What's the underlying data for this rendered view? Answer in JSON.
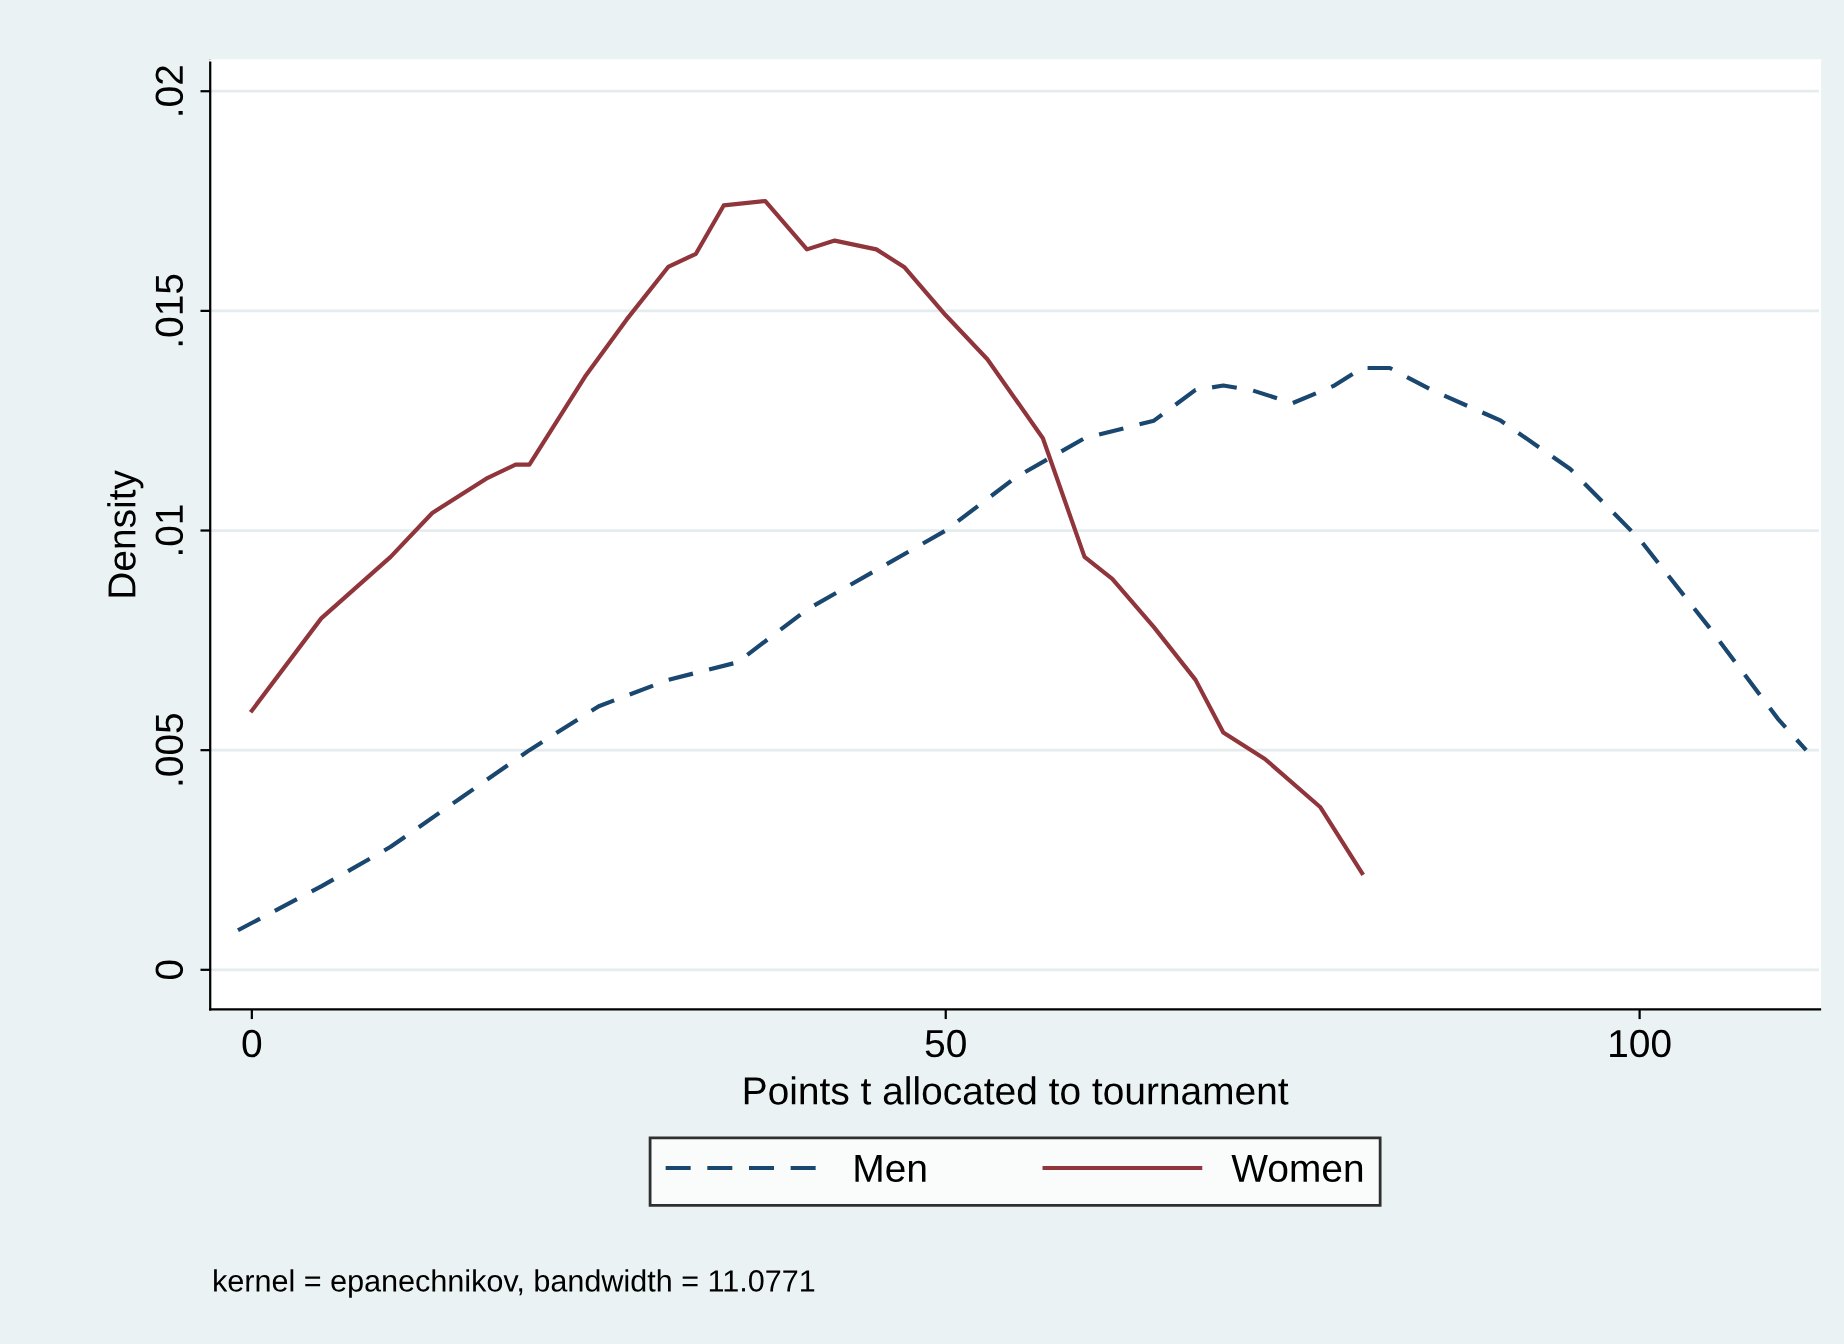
{
  "chart_data": {
    "type": "line",
    "xlabel": "Points t allocated to tournament",
    "ylabel": "Density",
    "xlim": [
      -3,
      113
    ],
    "xticks": [
      0,
      50,
      100
    ],
    "ylim": [
      -0.0009,
      0.0207
    ],
    "yticks": [
      {
        "value": 0,
        "label": "0"
      },
      {
        "value": 0.005,
        "label": ".005"
      },
      {
        "value": 0.01,
        "label": ".01"
      },
      {
        "value": 0.015,
        "label": ".015"
      },
      {
        "value": 0.02,
        "label": ".02"
      }
    ],
    "grid": "y",
    "legend": "bottom",
    "annotations": [
      "kernel = epanechnikov, bandwidth = 11.0771"
    ],
    "series": [
      {
        "name": "Men",
        "color": "#1a476f",
        "line_style": "dashed",
        "x": [
          -1,
          5,
          10,
          15,
          20,
          25,
          30,
          35,
          40,
          45,
          50,
          55,
          60,
          65,
          68,
          70,
          72,
          75,
          78,
          80,
          82,
          85,
          90,
          95,
          100,
          105,
          110,
          112
        ],
        "values": [
          0.0009,
          0.0019,
          0.0028,
          0.0039,
          0.005,
          0.006,
          0.0066,
          0.007,
          0.0082,
          0.0091,
          0.01,
          0.0112,
          0.0121,
          0.0125,
          0.0132,
          0.0133,
          0.0132,
          0.0129,
          0.0133,
          0.0137,
          0.0137,
          0.0132,
          0.0125,
          0.0114,
          0.0098,
          0.0078,
          0.0057,
          0.005
        ]
      },
      {
        "name": "Women",
        "color": "#90353b",
        "line_style": "solid",
        "x": [
          0,
          5,
          10,
          13,
          17,
          19,
          20,
          24,
          27,
          30,
          32,
          34,
          37,
          40,
          42,
          45,
          47,
          50,
          53,
          57,
          60,
          62,
          65,
          68,
          70,
          73,
          77,
          80
        ],
        "values": [
          0.0059,
          0.008,
          0.0094,
          0.0104,
          0.0112,
          0.0115,
          0.0115,
          0.0135,
          0.0148,
          0.016,
          0.0163,
          0.0174,
          0.0175,
          0.0164,
          0.0166,
          0.0164,
          0.016,
          0.0149,
          0.0139,
          0.0121,
          0.0094,
          0.0089,
          0.0078,
          0.0066,
          0.0054,
          0.0048,
          0.0037,
          0.0022
        ]
      }
    ]
  }
}
